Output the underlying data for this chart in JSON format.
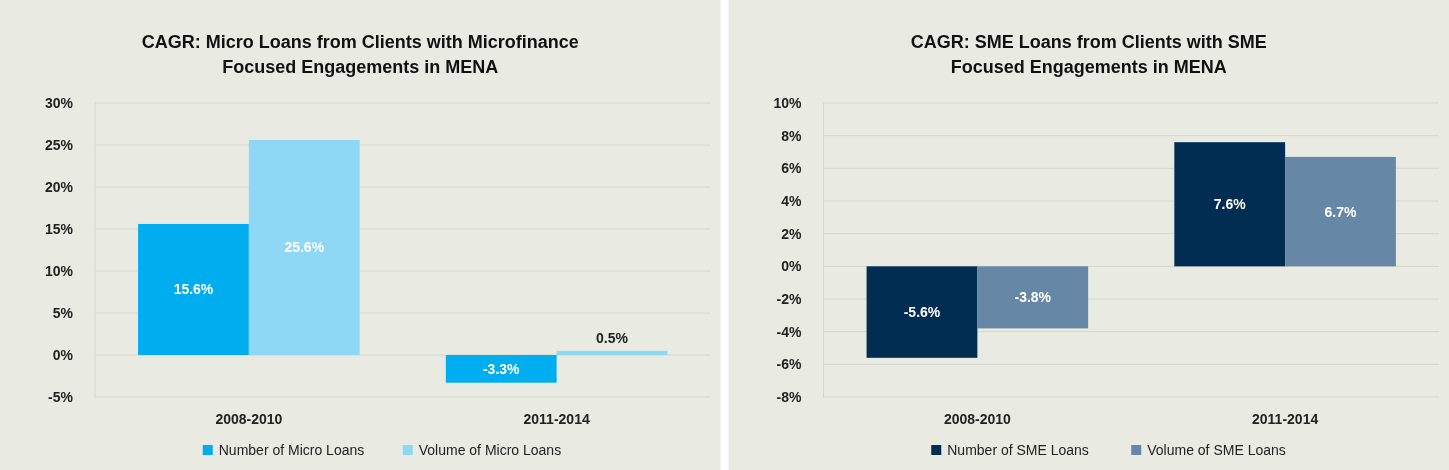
{
  "chart_data": [
    {
      "type": "bar",
      "title": "CAGR: Micro Loans from Clients with Microfinance\nFocused Engagements in MENA",
      "categories": [
        "2008-2010",
        "2011-2014"
      ],
      "series": [
        {
          "name": "Number of Micro Loans",
          "color": "#00aeef",
          "values": [
            15.6,
            -3.3
          ],
          "value_labels": [
            "15.6%",
            "-3.3%"
          ]
        },
        {
          "name": "Volume of Micro Loans",
          "color": "#8fd8f5",
          "values": [
            25.6,
            0.5
          ],
          "value_labels": [
            "25.6%",
            "0.5%"
          ]
        }
      ],
      "ylim": [
        -5,
        30
      ],
      "yticks": [
        {
          "value": -5,
          "label": "-5%"
        },
        {
          "value": 0,
          "label": "0%"
        },
        {
          "value": 5,
          "label": "5%"
        },
        {
          "value": 10,
          "label": "10%"
        },
        {
          "value": 15,
          "label": "15%"
        },
        {
          "value": 20,
          "label": "20%"
        },
        {
          "value": 25,
          "label": "25%"
        },
        {
          "value": 30,
          "label": "30%"
        }
      ],
      "grid": "y",
      "legend": "bottom"
    },
    {
      "type": "bar",
      "title": "CAGR: SME Loans from Clients with SME\nFocused Engagements in MENA",
      "categories": [
        "2008-2010",
        "2011-2014"
      ],
      "series": [
        {
          "name": "Number of SME Loans",
          "color": "#002d51",
          "values": [
            -5.6,
            7.6
          ],
          "value_labels": [
            "-5.6%",
            "7.6%"
          ]
        },
        {
          "name": "Volume of SME Loans",
          "color": "#6688a6",
          "values": [
            -3.8,
            6.7
          ],
          "value_labels": [
            "-3.8%",
            "6.7%"
          ]
        }
      ],
      "ylim": [
        -8,
        10
      ],
      "yticks": [
        {
          "value": -8,
          "label": "-8%"
        },
        {
          "value": -6,
          "label": "-6%"
        },
        {
          "value": -4,
          "label": "-4%"
        },
        {
          "value": -2,
          "label": "-2%"
        },
        {
          "value": 0,
          "label": "0%"
        },
        {
          "value": 2,
          "label": "2%"
        },
        {
          "value": 4,
          "label": "4%"
        },
        {
          "value": 6,
          "label": "6%"
        },
        {
          "value": 8,
          "label": "8%"
        },
        {
          "value": 10,
          "label": "10%"
        }
      ],
      "grid": "y",
      "legend": "bottom"
    }
  ]
}
